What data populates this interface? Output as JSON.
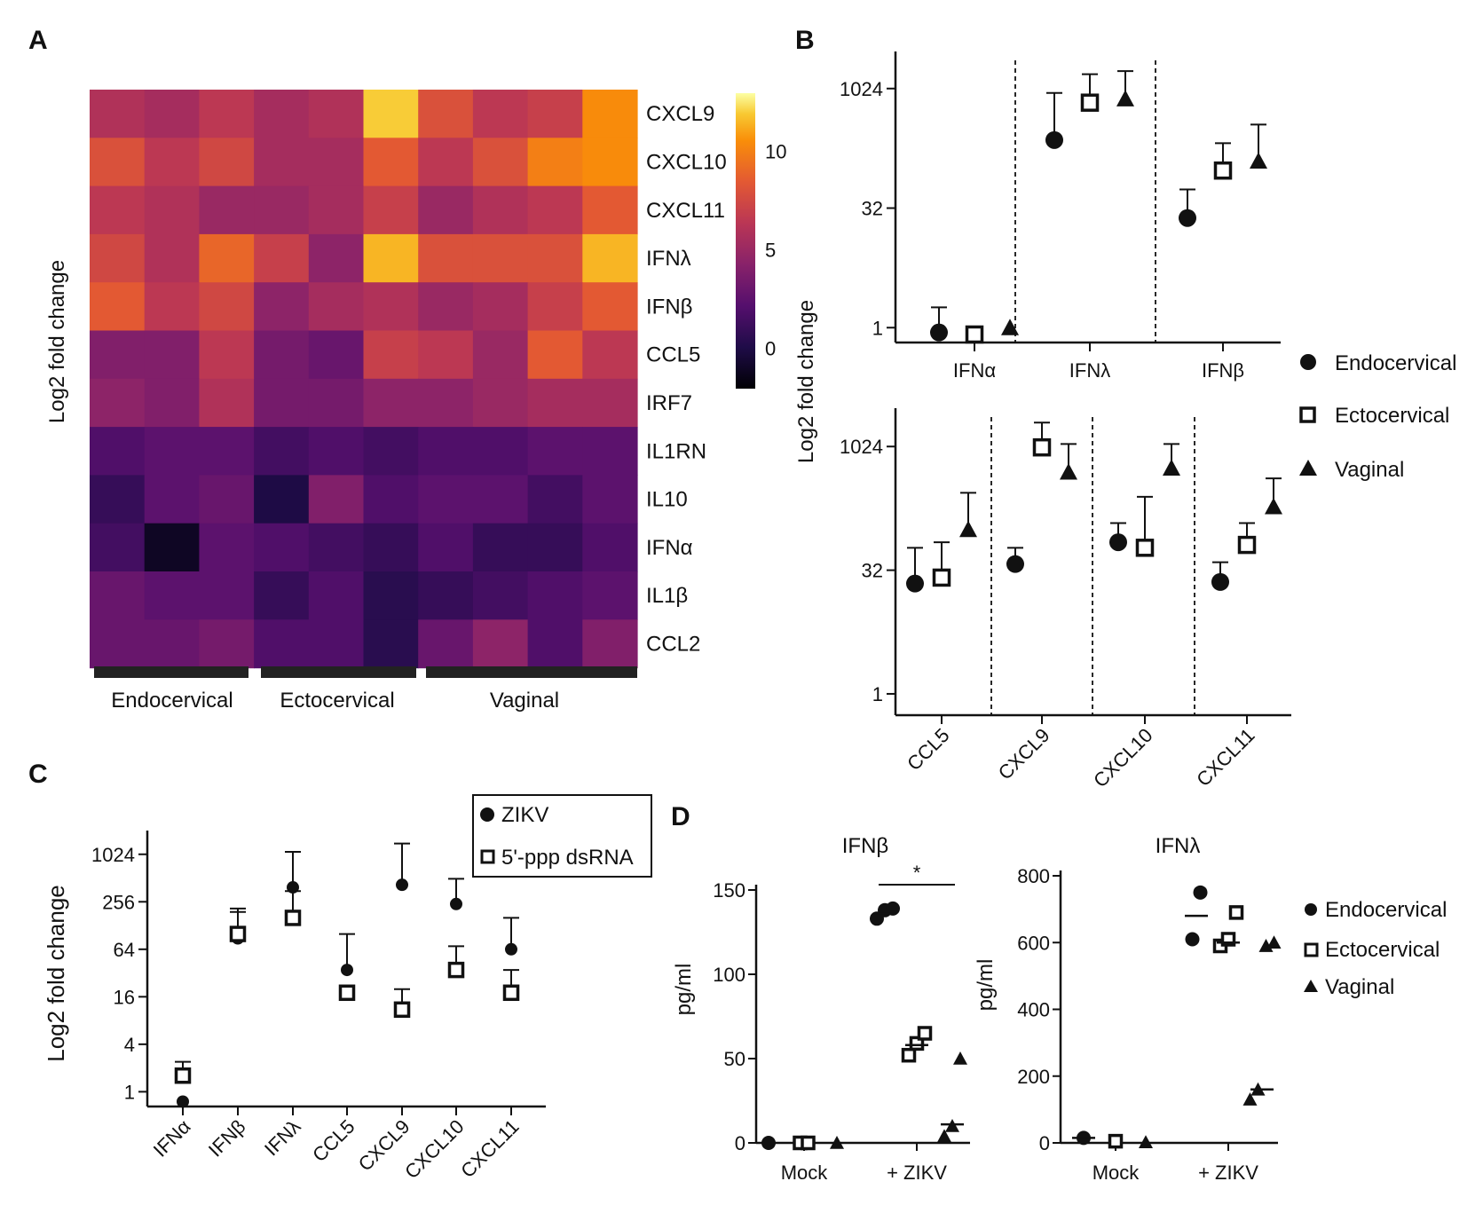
{
  "chart_data": [
    {
      "panel": "A",
      "type": "heatmap",
      "ylabel": "Log2 fold change",
      "rows": [
        "CXCL9",
        "CXCL10",
        "CXCL11",
        "IFNλ",
        "IFNβ",
        "CCL5",
        "IRF7",
        "IL1RN",
        "IL10",
        "IFNα",
        "IL1β",
        "CCL2"
      ],
      "groups": [
        "Endocervical",
        "Ectocervical",
        "Vaginal"
      ],
      "values": [
        [
          6,
          5.5,
          6.5,
          5.5,
          6,
          12,
          8,
          6.5,
          7,
          10.5
        ],
        [
          8,
          6.5,
          7.5,
          5.5,
          5.5,
          8.5,
          6.5,
          8,
          10,
          10.5
        ],
        [
          6.5,
          6,
          5,
          5,
          5.5,
          7,
          5,
          6,
          6.5,
          8.5
        ],
        [
          7.5,
          6,
          9,
          7,
          4.5,
          11.5,
          8,
          8,
          8,
          11.5
        ],
        [
          8.5,
          6.5,
          7.5,
          4.5,
          5.5,
          6,
          5,
          5.5,
          7,
          8.5
        ],
        [
          4,
          4,
          6.5,
          3.5,
          3,
          7,
          6.5,
          5,
          8.5,
          6.5
        ],
        [
          4.5,
          4,
          6,
          3.5,
          3.5,
          4.5,
          4.5,
          5,
          5.5,
          5.5
        ],
        [
          2,
          2.5,
          2.5,
          1.5,
          2,
          1.5,
          2,
          2,
          2.5,
          2.5
        ],
        [
          1,
          2.5,
          3,
          0,
          4,
          2,
          2.5,
          2.5,
          1.5,
          2.5
        ],
        [
          1.5,
          -1,
          2.5,
          2,
          1.5,
          1,
          2,
          1,
          1,
          2
        ],
        [
          3,
          2.5,
          2.5,
          1,
          2,
          0.5,
          1,
          1.5,
          2,
          2.5
        ],
        [
          3,
          3,
          3.5,
          2,
          2,
          0.5,
          3,
          4.5,
          2,
          4
        ]
      ],
      "colorbar": {
        "min": -2,
        "max": 13,
        "ticks": [
          0,
          5,
          10
        ]
      }
    },
    {
      "panel": "B",
      "type": "scatter",
      "ylabel": "Log2 fold change",
      "scale": "log2",
      "yticks": [
        1,
        32,
        1024
      ],
      "series": [
        "Endocervical",
        "Ectocervical",
        "Vaginal"
      ],
      "subplots": [
        {
          "categories": [
            "IFNα",
            "IFNλ",
            "IFNβ"
          ],
          "ylim": [
            0.65,
            3000
          ],
          "values": {
            "Endocervical": [
              0.87,
              230,
              24
            ],
            "Ectocervical": [
              0.82,
              680,
              95
            ],
            "Vaginal": [
              1.0,
              760,
              125
            ]
          },
          "errors": {
            "Endocervical": [
              1.8,
              900,
              55
            ],
            "Ectocervical": [
              null,
              1550,
              210
            ],
            "Vaginal": [
              null,
              1700,
              360
            ]
          }
        },
        {
          "categories": [
            "CCL5",
            "CXCL9",
            "CXCL10",
            "CXCL11"
          ],
          "ylim": [
            0.55,
            3000
          ],
          "values": {
            "Endocervical": [
              22,
              38,
              70,
              23
            ],
            "Ectocervical": [
              26,
              1000,
              60,
              65
            ],
            "Vaginal": [
              100,
              500,
              560,
              190
            ]
          },
          "errors": {
            "Endocervical": [
              60,
              60,
              120,
              40
            ],
            "Ectocervical": [
              70,
              2000,
              250,
              120
            ],
            "Vaginal": [
              280,
              1100,
              1100,
              420
            ]
          }
        }
      ]
    },
    {
      "panel": "C",
      "type": "scatter",
      "ylabel": "Log2 fold change",
      "scale": "log2",
      "categories": [
        "IFNα",
        "IFNβ",
        "IFNλ",
        "CCL5",
        "CXCL9",
        "CXCL10",
        "CXCL11"
      ],
      "yticks": [
        1,
        4,
        16,
        64,
        256,
        1024
      ],
      "ylim": [
        0.65,
        2048
      ],
      "series": [
        {
          "name": "ZIKV",
          "values": [
            0.75,
            88,
            390,
            35,
            420,
            240,
            64
          ],
          "errors": [
            null,
            190,
            1100,
            100,
            1400,
            500,
            160
          ]
        },
        {
          "name": "5'-ppp dsRNA",
          "values": [
            1.6,
            100,
            160,
            18,
            11,
            35,
            18
          ],
          "errors": [
            2.4,
            210,
            350,
            null,
            20,
            70,
            35
          ]
        }
      ]
    },
    {
      "panel": "D",
      "type": "scatter",
      "ylabel": "pg/ml",
      "series": [
        "Endocervical",
        "Ectocervical",
        "Vaginal"
      ],
      "subplots": [
        {
          "title": "IFNβ",
          "categories": [
            "Mock",
            "+ ZIKV"
          ],
          "ylim": [
            0,
            150
          ],
          "yticks": [
            0,
            50,
            100,
            150
          ],
          "significance": "*",
          "points": {
            "Mock": {
              "Endocervical": [
                0
              ],
              "Ectocervical": [
                0,
                0
              ],
              "Vaginal": [
                0
              ]
            },
            "+ ZIKV": {
              "Endocervical": [
                133,
                138,
                139
              ],
              "Ectocervical": [
                52,
                59,
                65
              ],
              "Vaginal": [
                4,
                10,
                50
              ]
            }
          },
          "means": {
            "+ ZIKV": [
              136,
              58,
              11
            ]
          }
        },
        {
          "title": "IFNλ",
          "categories": [
            "Mock",
            "+ ZIKV"
          ],
          "ylim": [
            0,
            800
          ],
          "yticks": [
            0,
            200,
            400,
            600,
            800
          ],
          "points": {
            "Mock": {
              "Endocervical": [
                15
              ],
              "Ectocervical": [
                5
              ],
              "Vaginal": [
                2
              ]
            },
            "+ ZIKV": {
              "Endocervical": [
                610,
                750
              ],
              "Ectocervical": [
                590,
                610,
                690
              ],
              "Vaginal": [
                130,
                160,
                590,
                600
              ]
            }
          },
          "means": {
            "Mock": [
              15
            ],
            "+ ZIKV": [
              680,
              600,
              160
            ]
          }
        }
      ]
    }
  ],
  "labels": {
    "panel_a": "A",
    "panel_b": "B",
    "panel_c": "C",
    "panel_d": "D",
    "y_log2": "Log2 fold change",
    "y_pgml": "pg/ml",
    "group_endo": "Endocervical",
    "group_ecto": "Ectocervical",
    "group_vag": "Vaginal",
    "legend_endo": "Endocervical",
    "legend_ecto": "Ectocervical",
    "legend_vag": "Vaginal",
    "legend_zikv": "ZIKV",
    "legend_dsrna": "5'-ppp dsRNA",
    "d_title_1": "IFNβ",
    "d_title_2": "IFNλ",
    "d_mock": "Mock",
    "d_zikv": "+ ZIKV",
    "d_sig": "*"
  }
}
